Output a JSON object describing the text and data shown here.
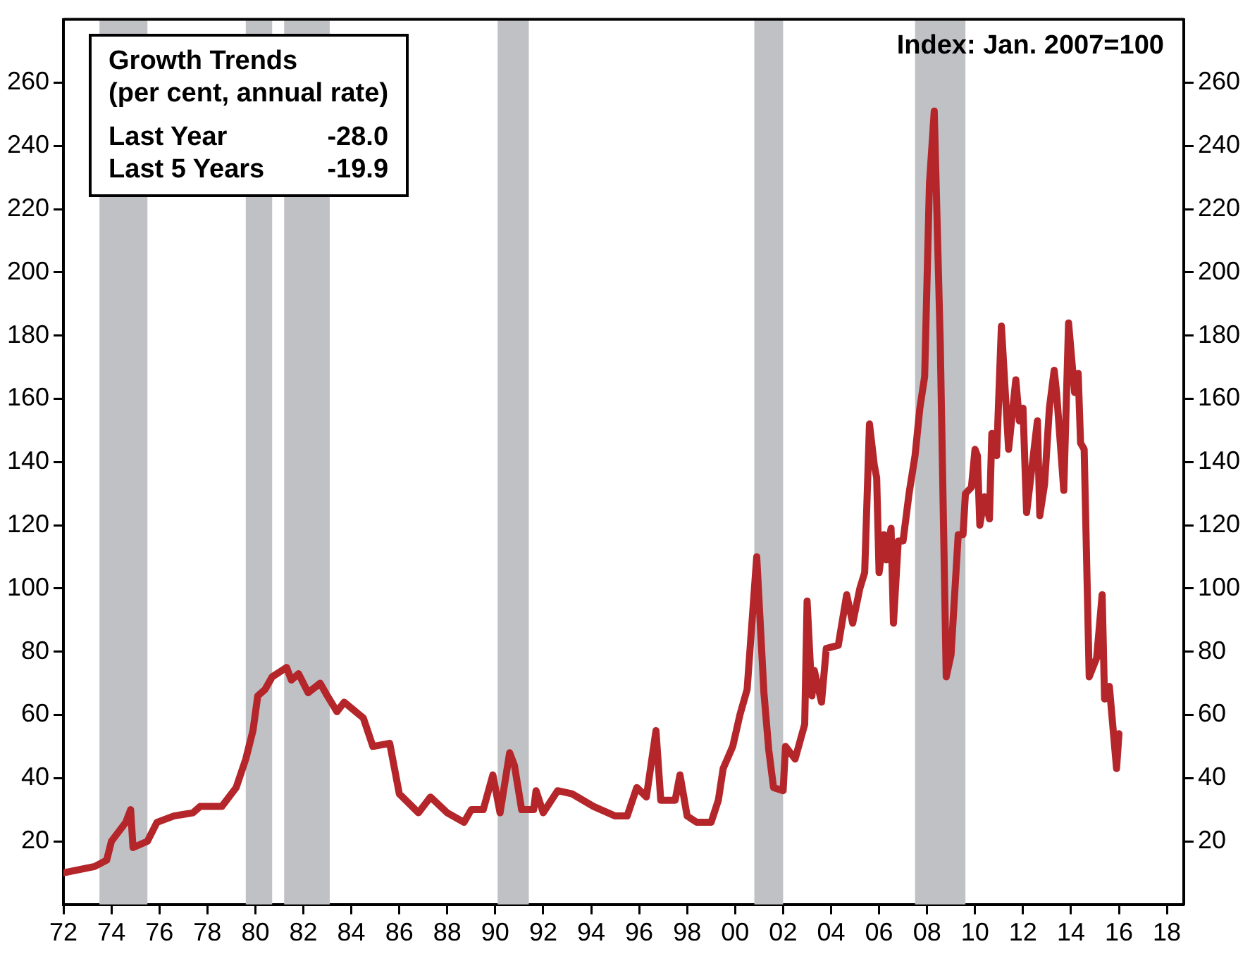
{
  "chart_data": {
    "type": "line",
    "annotations": [
      "Growth Trends",
      "(per cent, annual rate)",
      "Last Year",
      "-28.0",
      "Last 5 Years",
      "-19.9",
      "Index: Jan. 2007=100"
    ],
    "series": [
      {
        "color": "#b5262b",
        "x": [
          1972,
          1973.3,
          1973.8,
          1974.0,
          1974.3,
          1974.6,
          1974.8,
          1974.9,
          1975.5,
          1975.9,
          1976.6,
          1977.4,
          1977.7,
          1978.6,
          1979.2,
          1979.6,
          1979.9,
          1980.1,
          1980.4,
          1980.7,
          1981.3,
          1981.5,
          1981.8,
          1982.2,
          1982.7,
          1983.0,
          1983.4,
          1983.7,
          1984.5,
          1984.9,
          1985.6,
          1986.0,
          1986.8,
          1987.3,
          1988.0,
          1988.7,
          1989.0,
          1989.5,
          1989.9,
          1990.2,
          1990.6,
          1990.8,
          1991.1,
          1991.6,
          1991.7,
          1992.0,
          1992.6,
          1993.2,
          1994.1,
          1995.0,
          1995.5,
          1995.9,
          1996.3,
          1996.7,
          1996.9,
          1997.5,
          1997.7,
          1998.0,
          1998.4,
          1999.0,
          1999.3,
          1999.5,
          1999.9,
          2000.2,
          2000.5,
          2000.9,
          2001.2,
          2001.4,
          2001.6,
          2002.0,
          2002.1,
          2002.5,
          2002.9,
          2003.0,
          2003.2,
          2003.3,
          2003.6,
          2003.8,
          2004.3,
          2004.65,
          2004.9,
          2005.2,
          2005.4,
          2005.6,
          2005.8,
          2005.9,
          2006.0,
          2006.2,
          2006.3,
          2006.5,
          2006.6,
          2006.8,
          2007.0,
          2007.25,
          2007.5,
          2007.7,
          2007.9,
          2008.1,
          2008.3,
          2008.55,
          2008.8,
          2009.0,
          2009.3,
          2009.5,
          2009.6,
          2009.85,
          2010.0,
          2010.1,
          2010.2,
          2010.4,
          2010.6,
          2010.7,
          2010.9,
          2011.1,
          2011.4,
          2011.7,
          2011.85,
          2012.0,
          2012.15,
          2012.4,
          2012.6,
          2012.7,
          2012.9,
          2013.1,
          2013.3,
          2013.4,
          2013.7,
          2013.9,
          2014.15,
          2014.3,
          2014.4,
          2014.55,
          2014.76,
          2015.07,
          2015.3,
          2015.4,
          2015.6,
          2015.9,
          2016.0
        ],
        "values": [
          10,
          12,
          14,
          20,
          23,
          26,
          30,
          18,
          20,
          26,
          28,
          29,
          31,
          31,
          37,
          46,
          55,
          66,
          68,
          72,
          75,
          71,
          73,
          67,
          70,
          66,
          61,
          64,
          59,
          50,
          51,
          35,
          29,
          34,
          29,
          26,
          30,
          30,
          41,
          29,
          48,
          44,
          30,
          30,
          36,
          29,
          36,
          35,
          31,
          28,
          28,
          37,
          34,
          55,
          33,
          33,
          41,
          28,
          26,
          26,
          33,
          43,
          50,
          60,
          68,
          110,
          67,
          49,
          37,
          36,
          50,
          46,
          57,
          96,
          66,
          74,
          64,
          81,
          82,
          98,
          89,
          100,
          105,
          152,
          139,
          135,
          105,
          117,
          109,
          119,
          89,
          115,
          115,
          130,
          142,
          157,
          167,
          228,
          251,
          178,
          72,
          79,
          117,
          117,
          130,
          132,
          144,
          142,
          120,
          129,
          122,
          149,
          142,
          183,
          144,
          166,
          153,
          157,
          124,
          140,
          153,
          123,
          133,
          157,
          169,
          162,
          131,
          184,
          162,
          168,
          146,
          144,
          72,
          78,
          98,
          65,
          69,
          43,
          54
        ]
      }
    ],
    "xlim": [
      1972,
      2018.7
    ],
    "xticks": [
      {
        "value": 1972,
        "label": "72"
      },
      {
        "value": 1974,
        "label": "74"
      },
      {
        "value": 1976,
        "label": "76"
      },
      {
        "value": 1978,
        "label": "78"
      },
      {
        "value": 1980,
        "label": "80"
      },
      {
        "value": 1982,
        "label": "82"
      },
      {
        "value": 1984,
        "label": "84"
      },
      {
        "value": 1986,
        "label": "86"
      },
      {
        "value": 1988,
        "label": "88"
      },
      {
        "value": 1990,
        "label": "90"
      },
      {
        "value": 1992,
        "label": "92"
      },
      {
        "value": 1994,
        "label": "94"
      },
      {
        "value": 1996,
        "label": "96"
      },
      {
        "value": 1998,
        "label": "98"
      },
      {
        "value": 2000,
        "label": "00"
      },
      {
        "value": 2002,
        "label": "02"
      },
      {
        "value": 2004,
        "label": "04"
      },
      {
        "value": 2006,
        "label": "06"
      },
      {
        "value": 2008,
        "label": "08"
      },
      {
        "value": 2010,
        "label": "10"
      },
      {
        "value": 2012,
        "label": "12"
      },
      {
        "value": 2014,
        "label": "14"
      },
      {
        "value": 2016,
        "label": "16"
      },
      {
        "value": 2018,
        "label": "18"
      }
    ],
    "ylim": [
      0,
      280
    ],
    "yticks": [
      20,
      40,
      60,
      80,
      100,
      120,
      140,
      160,
      180,
      200,
      220,
      240,
      260
    ],
    "y2lim": [
      0,
      280
    ],
    "y2ticks": [
      20,
      40,
      60,
      80,
      100,
      120,
      140,
      160,
      180,
      200,
      220,
      240,
      260
    ],
    "bands": [
      {
        "axis": "x",
        "from": 1973.5,
        "to": 1975.5,
        "color": "#c0c1c5"
      },
      {
        "axis": "x",
        "from": 1979.6,
        "to": 1980.7,
        "color": "#c0c1c5"
      },
      {
        "axis": "x",
        "from": 1981.2,
        "to": 1983.1,
        "color": "#c0c1c5"
      },
      {
        "axis": "x",
        "from": 1990.1,
        "to": 1991.4,
        "color": "#c0c1c5"
      },
      {
        "axis": "x",
        "from": 2000.8,
        "to": 2002.0,
        "color": "#c0c1c5"
      },
      {
        "axis": "x",
        "from": 2007.5,
        "to": 2009.6,
        "color": "#c0c1c5"
      }
    ],
    "grid": false,
    "legend": false,
    "marker": "none",
    "line_style": "solid"
  }
}
